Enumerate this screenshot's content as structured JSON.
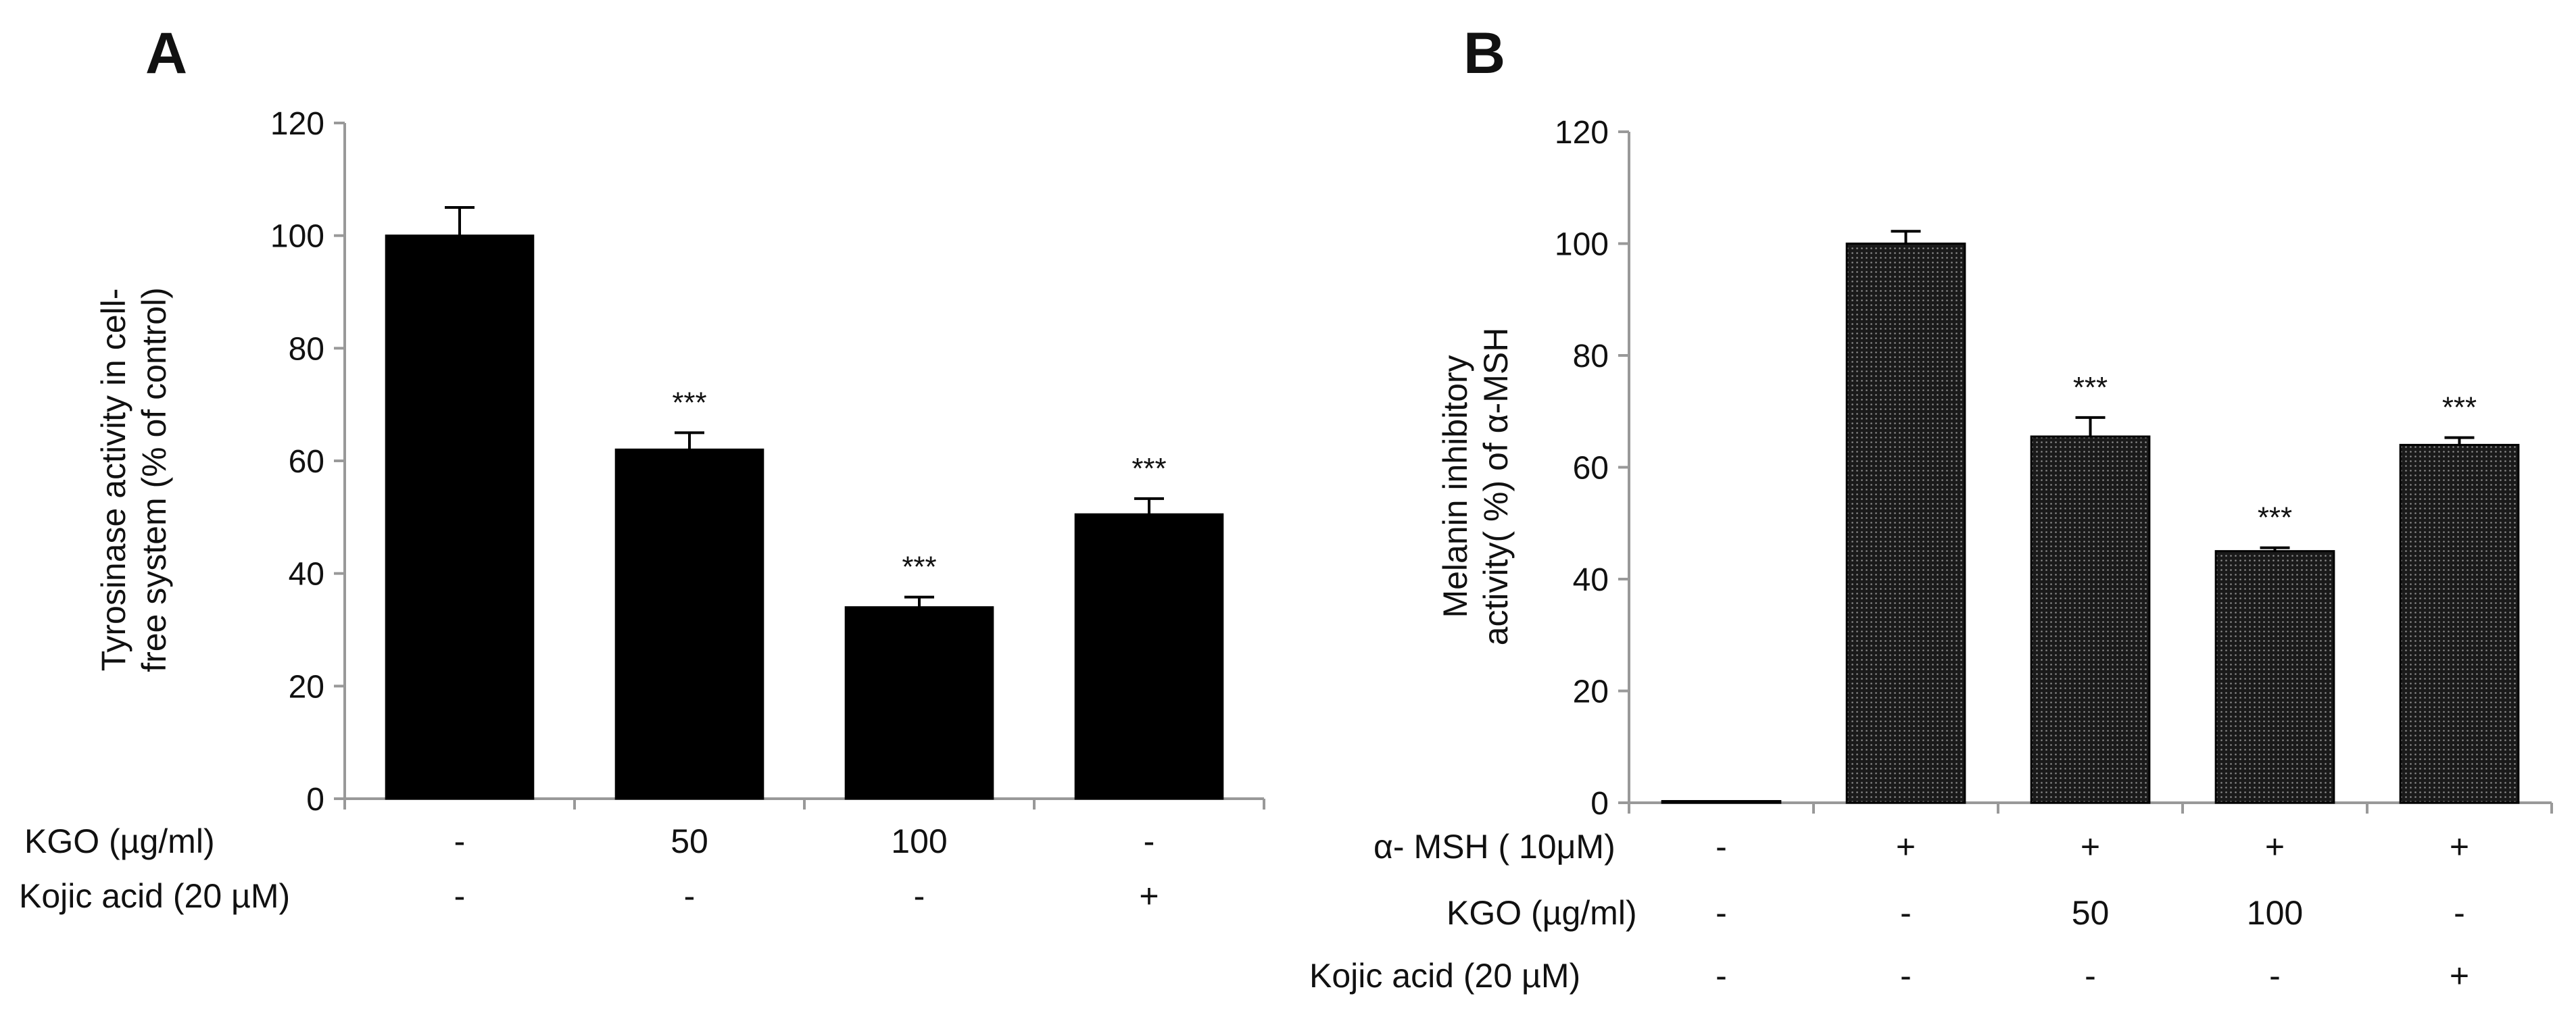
{
  "colors": {
    "bar_solid": "#000000",
    "axis": "#999999",
    "text": "#111111"
  },
  "chart_data": [
    {
      "type": "bar",
      "panel": "A",
      "ylabel_lines": [
        "Tyrosinase activity in cell-",
        "free system  (% of control)"
      ],
      "ylim": [
        0,
        120
      ],
      "yticks": [
        0,
        20,
        40,
        60,
        80,
        100,
        120
      ],
      "fill": "solid",
      "values": [
        100,
        62,
        34,
        50.5
      ],
      "errors": [
        5,
        3,
        1.8,
        2.8
      ],
      "significance": [
        "",
        "***",
        "***",
        "***"
      ],
      "conditions": [
        {
          "label": "KGO (µg/ml)",
          "values": [
            "-",
            "50",
            "100",
            "-"
          ]
        },
        {
          "label": "Kojic acid (20 µM)",
          "values": [
            "-",
            "-",
            "-",
            "+"
          ]
        }
      ]
    },
    {
      "type": "bar",
      "panel": "B",
      "ylabel_lines": [
        "Melanin inhibitory",
        "activity( %) of α-MSH"
      ],
      "ylim": [
        0,
        120
      ],
      "yticks": [
        0,
        20,
        40,
        60,
        80,
        100,
        120
      ],
      "fill": "dotted",
      "values": [
        0.3,
        100,
        65.5,
        45,
        64
      ],
      "errors": [
        0,
        2.2,
        3.4,
        0.6,
        1.3
      ],
      "significance": [
        "",
        "",
        "***",
        "***",
        "***"
      ],
      "conditions": [
        {
          "label": "α- MSH ( 10μM)",
          "values": [
            "-",
            "+",
            "+",
            "+",
            "+"
          ]
        },
        {
          "label": "KGO (µg/ml)",
          "values": [
            "-",
            "-",
            "50",
            "100",
            "-"
          ]
        },
        {
          "label": "Kojic acid (20 µM)",
          "values": [
            "-",
            "-",
            "-",
            "-",
            "+"
          ]
        }
      ]
    }
  ]
}
